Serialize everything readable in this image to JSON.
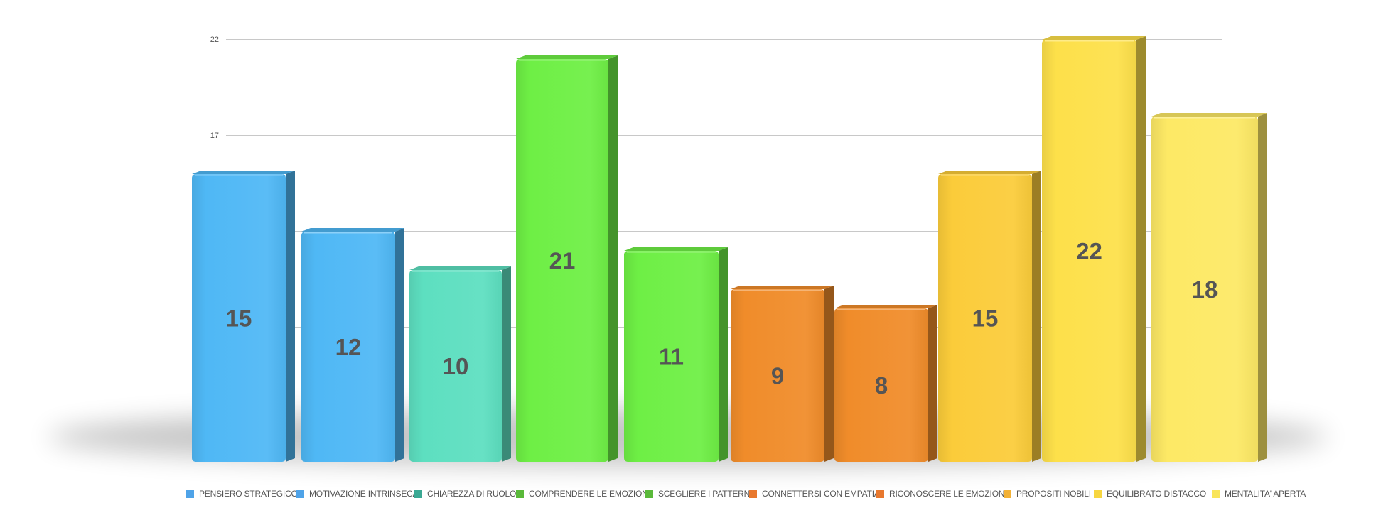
{
  "chart_data": {
    "type": "bar",
    "style": "3d",
    "title": "",
    "xlabel": "",
    "ylabel": "",
    "ylim": [
      0,
      22
    ],
    "yticks": [
      17,
      22
    ],
    "grid": true,
    "legend_position": "bottom",
    "show_data_labels": true,
    "categories": [
      "PENSIERO STRATEGICO",
      "MOTIVAZIONE INTRINSECA",
      "CHIAREZZA DI RUOLO",
      "COMPRENDERE LE EMOZIONI",
      "SCEGLIERE I PATTERN",
      "CONNETTERSI CON EMPATIA",
      "RICONOSCERE LE EMOZIONI",
      "PROPOSITI NOBILI",
      "EQUILIBRATO DISTACCO",
      "MENTALITA' APERTA"
    ],
    "values": [
      15,
      12,
      10,
      21,
      11,
      9,
      8,
      15,
      22,
      18
    ],
    "colors": [
      "#4fb8f5",
      "#4fb8f5",
      "#5ddfc0",
      "#6eef45",
      "#6eef45",
      "#f08c2a",
      "#f08c2a",
      "#fbcc3a",
      "#fde04a",
      "#fde965"
    ],
    "legend_colors": [
      "#4fa3e8",
      "#4fa3e8",
      "#3aa893",
      "#5ab93a",
      "#5ab93a",
      "#e8782e",
      "#e8782e",
      "#f2b136",
      "#f7d640",
      "#f9e55a"
    ]
  }
}
